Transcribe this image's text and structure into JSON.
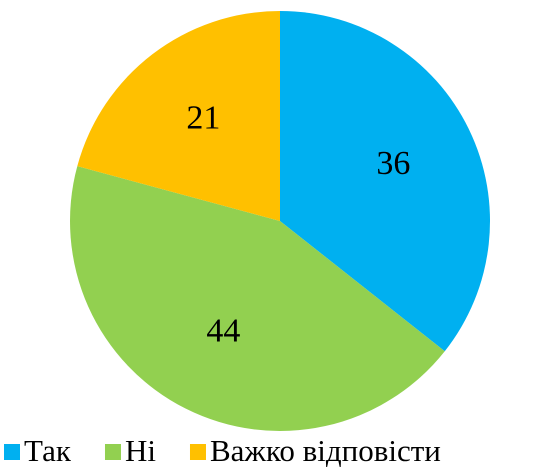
{
  "chart_data": {
    "type": "pie",
    "categories": [
      "Так",
      "Ні",
      "Важко відповісти"
    ],
    "values": [
      36,
      44,
      21
    ],
    "colors": [
      "#00b0f0",
      "#92d050",
      "#ffc000"
    ],
    "legend": "bottom"
  }
}
